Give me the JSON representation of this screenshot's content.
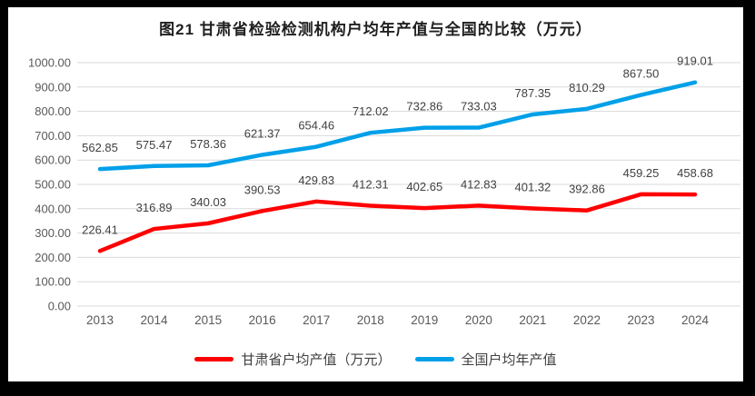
{
  "title": "图21 甘肃省检验检测机构户均年产值与全国的比较（万元）",
  "chart_data": {
    "type": "line",
    "categories": [
      "2013",
      "2014",
      "2015",
      "2016",
      "2017",
      "2018",
      "2019",
      "2020",
      "2021",
      "2022",
      "2023",
      "2024"
    ],
    "series": [
      {
        "name": "甘肃省户均产值（万元）",
        "color": "#ff0000",
        "values": [
          226.41,
          316.89,
          340.03,
          390.53,
          429.83,
          412.31,
          402.65,
          412.83,
          401.32,
          392.86,
          459.25,
          458.68
        ]
      },
      {
        "name": "全国户均年产值",
        "color": "#00a0e9",
        "values": [
          562.85,
          575.47,
          578.36,
          621.37,
          654.46,
          712.02,
          732.86,
          733.03,
          787.35,
          810.29,
          867.5,
          919.01
        ]
      }
    ],
    "ylim": [
      0,
      1000
    ],
    "ytick_step": 100,
    "ytick_format_decimals": 2,
    "grid": true,
    "data_labels": true,
    "legend_position": "bottom",
    "gridline_color": "#d9d9d9",
    "tick_label_color": "#595959",
    "data_label_color": "#404040"
  }
}
